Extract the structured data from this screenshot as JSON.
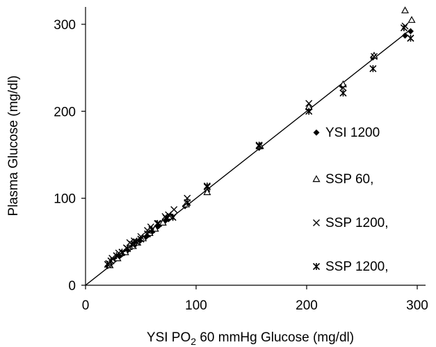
{
  "chart_data": {
    "type": "scatter",
    "xlabel": "YSI PO2 60 mmHg Glucose (mg/dl)",
    "xlabel_parts": {
      "before": "YSI PO",
      "sub": "2",
      "after": " 60 mmHg Glucose (mg/dl)"
    },
    "ylabel": "Plasma Glucose (mg/dl)",
    "xlim": [
      0,
      300
    ],
    "ylim": [
      0,
      300
    ],
    "x_ticks": [
      "0",
      "100",
      "200",
      "300"
    ],
    "y_ticks": [
      "0",
      "100",
      "200",
      "300"
    ],
    "grid": false,
    "legend_position": "right",
    "identity_line": {
      "from": [
        0,
        0
      ],
      "to": [
        294,
        294
      ]
    },
    "series": [
      {
        "name": "YSI 1200",
        "marker": "diamond",
        "points": [
          [
            20,
            22
          ],
          [
            22,
            24
          ],
          [
            27,
            30
          ],
          [
            30,
            33
          ],
          [
            35,
            37
          ],
          [
            38,
            40
          ],
          [
            42,
            44
          ],
          [
            45,
            47
          ],
          [
            48,
            50
          ],
          [
            50,
            52
          ],
          [
            55,
            56
          ],
          [
            57,
            58
          ],
          [
            60,
            61
          ],
          [
            64,
            66
          ],
          [
            66,
            68
          ],
          [
            72,
            74
          ],
          [
            75,
            76
          ],
          [
            78,
            79
          ],
          [
            90,
            91
          ],
          [
            92,
            93
          ],
          [
            110,
            108
          ],
          [
            157,
            158
          ],
          [
            202,
            202
          ],
          [
            232,
            229
          ],
          [
            260,
            262
          ],
          [
            289,
            287
          ],
          [
            294,
            292
          ]
        ]
      },
      {
        "name": "SSP 60,",
        "marker": "triangle",
        "points": [
          [
            22,
            23
          ],
          [
            29,
            31
          ],
          [
            36,
            38
          ],
          [
            43,
            45
          ],
          [
            47,
            49
          ],
          [
            52,
            54
          ],
          [
            58,
            60
          ],
          [
            63,
            65
          ],
          [
            70,
            72
          ],
          [
            77,
            79
          ],
          [
            91,
            93
          ],
          [
            110,
            107
          ],
          [
            158,
            160
          ],
          [
            202,
            205
          ],
          [
            233,
            231
          ],
          [
            261,
            264
          ],
          [
            289,
            316
          ],
          [
            295,
            305
          ]
        ]
      },
      {
        "name": "SSP 1200,",
        "marker": "x",
        "points": [
          [
            21,
            25
          ],
          [
            24,
            31
          ],
          [
            30,
            37
          ],
          [
            37,
            43
          ],
          [
            40,
            49
          ],
          [
            44,
            51
          ],
          [
            50,
            56
          ],
          [
            56,
            63
          ],
          [
            59,
            67
          ],
          [
            66,
            71
          ],
          [
            72,
            79
          ],
          [
            75,
            81
          ],
          [
            80,
            87
          ],
          [
            92,
            100
          ],
          [
            110,
            113
          ],
          [
            157,
            160
          ],
          [
            202,
            209
          ],
          [
            233,
            227
          ],
          [
            261,
            263
          ],
          [
            289,
            298
          ],
          [
            294,
            284
          ]
        ]
      },
      {
        "name": "SSP 1200,",
        "marker": "asterisk",
        "points": [
          [
            20,
            24
          ],
          [
            23,
            28
          ],
          [
            28,
            34
          ],
          [
            33,
            38
          ],
          [
            38,
            42
          ],
          [
            42,
            47
          ],
          [
            46,
            50
          ],
          [
            50,
            53
          ],
          [
            56,
            59
          ],
          [
            60,
            64
          ],
          [
            65,
            71
          ],
          [
            73,
            77
          ],
          [
            79,
            78
          ],
          [
            92,
            95
          ],
          [
            110,
            114
          ],
          [
            157,
            161
          ],
          [
            202,
            200
          ],
          [
            233,
            221
          ],
          [
            260,
            249
          ],
          [
            288,
            296
          ],
          [
            294,
            284
          ]
        ]
      }
    ]
  }
}
